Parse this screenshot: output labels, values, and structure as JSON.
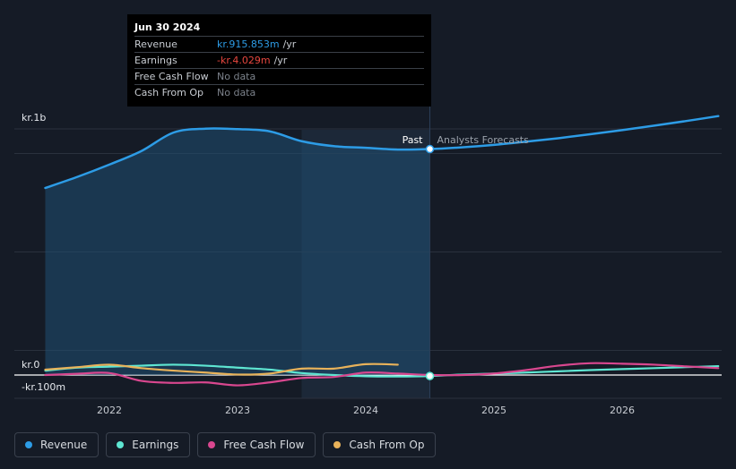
{
  "tooltip": {
    "date": "Jun 30 2024",
    "rows": [
      {
        "label": "Revenue",
        "value": "kr.915.853m",
        "unit": "/yr"
      },
      {
        "label": "Earnings",
        "value": "-kr.4.029m",
        "unit": "/yr"
      },
      {
        "label": "Free Cash Flow",
        "value": "No data"
      },
      {
        "label": "Cash From Op",
        "value": "No data"
      }
    ]
  },
  "legend": [
    {
      "label": "Revenue",
      "color": "#2d9ce6"
    },
    {
      "label": "Earnings",
      "color": "#5ee6d2"
    },
    {
      "label": "Free Cash Flow",
      "color": "#d9478f"
    },
    {
      "label": "Cash From Op",
      "color": "#e8b25a"
    }
  ],
  "chart_data": {
    "type": "line",
    "y_tick_labels": [
      "kr.1b",
      "kr.0",
      "-kr.100m"
    ],
    "x_tick_labels": [
      "2022",
      "2023",
      "2024",
      "2025",
      "2026"
    ],
    "xlim": [
      2021.5,
      2026.75
    ],
    "ylim": [
      -100,
      1100
    ],
    "past_label": "Past",
    "forecast_label": "Analysts Forecasts",
    "forecast_start": 2024.5,
    "highlight_start": 2023.5,
    "colors": {
      "revenue": "#2d9ce6",
      "earnings": "#5ee6d2",
      "fcf": "#d9478f",
      "cfo": "#e8b25a"
    },
    "series": [
      {
        "name": "Revenue",
        "key": "revenue",
        "x": [
          2021.5,
          2021.75,
          2022.0,
          2022.25,
          2022.5,
          2022.75,
          2023.0,
          2023.25,
          2023.5,
          2023.75,
          2024.0,
          2024.25,
          2024.5,
          2024.75,
          2025.0,
          2025.25,
          2025.5,
          2025.75,
          2026.0,
          2026.25,
          2026.5,
          2026.75
        ],
        "values": [
          760,
          805,
          855,
          910,
          985,
          1001,
          999,
          990,
          950,
          930,
          923,
          916,
          918,
          925,
          935,
          948,
          962,
          978,
          995,
          1013,
          1032,
          1052
        ]
      },
      {
        "name": "Earnings",
        "key": "earnings",
        "x": [
          2021.5,
          2021.75,
          2022.0,
          2022.25,
          2022.5,
          2022.75,
          2023.0,
          2023.25,
          2023.5,
          2023.75,
          2024.0,
          2024.25,
          2024.5,
          2024.75,
          2025.0,
          2025.25,
          2025.5,
          2025.75,
          2026.0,
          2026.25,
          2026.5,
          2026.75
        ],
        "values": [
          18,
          30,
          34,
          38,
          42,
          38,
          30,
          22,
          8,
          0,
          -5,
          -6,
          -4,
          2,
          6,
          10,
          15,
          20,
          24,
          28,
          32,
          36
        ]
      },
      {
        "name": "Free Cash Flow",
        "key": "fcf",
        "x": [
          2021.5,
          2021.75,
          2022.0,
          2022.25,
          2022.5,
          2022.75,
          2023.0,
          2023.25,
          2023.5,
          2023.75,
          2024.0,
          2024.25,
          2024.5,
          2024.75,
          2025.0,
          2025.25,
          2025.5,
          2025.75,
          2026.0,
          2026.25,
          2026.5,
          2026.75
        ],
        "values": [
          0,
          5,
          8,
          -24,
          -32,
          -30,
          -42,
          -30,
          -12,
          -8,
          10,
          6,
          0,
          0,
          6,
          20,
          38,
          48,
          46,
          42,
          35,
          28
        ]
      },
      {
        "name": "Cash From Op",
        "key": "cfo",
        "x": [
          2021.5,
          2021.75,
          2022.0,
          2022.25,
          2022.5,
          2022.75,
          2023.0,
          2023.25,
          2023.5,
          2023.75,
          2024.0,
          2024.25
        ],
        "values": [
          22,
          32,
          42,
          28,
          18,
          10,
          2,
          6,
          26,
          26,
          44,
          42
        ]
      }
    ]
  }
}
